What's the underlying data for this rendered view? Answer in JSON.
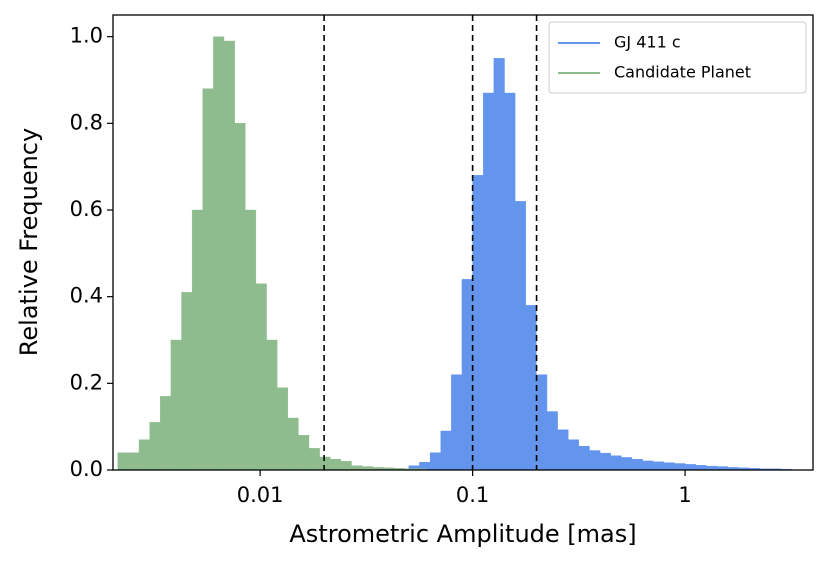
{
  "chart_data": {
    "type": "histogram",
    "xlabel": "Astrometric Amplitude [mas]",
    "ylabel": "Relative Frequency",
    "xscale": "log",
    "xlim": [
      0.00203,
      4.0
    ],
    "ylim": [
      0,
      1.05
    ],
    "xticks": [
      0.01,
      0.1,
      1
    ],
    "yticks": [
      {
        "value": 0,
        "label": "0.0"
      },
      0.2,
      0.4,
      0.6,
      0.8,
      {
        "value": 1,
        "label": "1.0"
      }
    ],
    "vlines": [
      0.02,
      0.1,
      0.2
    ],
    "legend": "upper right",
    "series": [
      {
        "name": "GJ 411 c",
        "color": "#6495ed",
        "bins": [
          0.0501,
          0.0562,
          0.0631,
          0.0708,
          0.0794,
          0.0891,
          0.1,
          0.1122,
          0.1259,
          0.1413,
          0.1585,
          0.1778,
          0.1995,
          0.2239,
          0.2512,
          0.2818,
          0.3162,
          0.3548,
          0.3981,
          0.4467,
          0.5012,
          0.5623,
          0.631,
          0.7079,
          0.7943,
          0.8913,
          1.0,
          1.122,
          1.259,
          1.413,
          1.585,
          1.778,
          1.995,
          2.239,
          2.512,
          2.818,
          3.162
        ],
        "values": [
          0.01,
          0.018,
          0.04,
          0.09,
          0.22,
          0.44,
          0.68,
          0.87,
          0.95,
          0.87,
          0.62,
          0.38,
          0.22,
          0.135,
          0.093,
          0.07,
          0.055,
          0.045,
          0.039,
          0.033,
          0.029,
          0.025,
          0.021,
          0.019,
          0.017,
          0.015,
          0.013,
          0.011,
          0.009,
          0.008,
          0.006,
          0.005,
          0.004,
          0.003,
          0.003,
          0.002
        ]
      },
      {
        "name": "Candidate Planet",
        "color": "#8fbc8f",
        "bins": [
          0.002138,
          0.002399,
          0.002692,
          0.00302,
          0.003388,
          0.003802,
          0.004266,
          0.004786,
          0.00537,
          0.006026,
          0.006761,
          0.007586,
          0.008511,
          0.00955,
          0.01072,
          0.01202,
          0.01349,
          0.01514,
          0.01698,
          0.01905,
          0.02138,
          0.02399,
          0.02692,
          0.0302,
          0.03388,
          0.03802,
          0.04266,
          0.04786,
          0.0537,
          0.06026
        ],
        "values": [
          0.04,
          0.04,
          0.07,
          0.11,
          0.17,
          0.3,
          0.41,
          0.6,
          0.88,
          1.0,
          0.99,
          0.8,
          0.6,
          0.43,
          0.3,
          0.19,
          0.12,
          0.08,
          0.05,
          0.03,
          0.025,
          0.02,
          0.01,
          0.008,
          0.006,
          0.005,
          0.004,
          0.003,
          0.003
        ]
      }
    ]
  }
}
